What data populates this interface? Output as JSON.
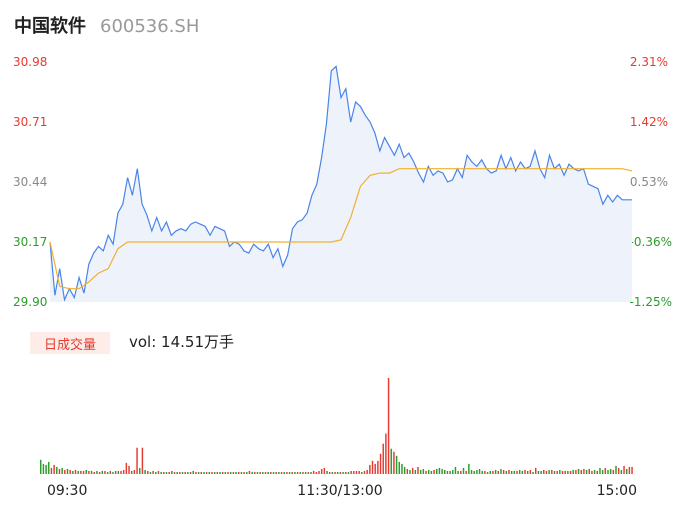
{
  "header": {
    "name": "中国软件",
    "code": "600536.SH"
  },
  "chart_data": {
    "type": "line",
    "price_axis": {
      "ticks": [
        "30.98",
        "30.71",
        "30.44",
        "30.17",
        "29.90"
      ],
      "ylim": [
        29.9,
        30.98
      ]
    },
    "percent_axis": {
      "ticks": [
        "2.31%",
        "1.42%",
        "0.53%",
        "-0.36%",
        "-1.25%"
      ]
    },
    "x_ticks": [
      "09:30",
      "11:30/13:00",
      "15:00"
    ],
    "series": [
      {
        "role": "price",
        "x": [
          0,
          2,
          4,
          6,
          8,
          10,
          12,
          14,
          16,
          18,
          20,
          22,
          24,
          26,
          28,
          30,
          32,
          34,
          36,
          38,
          40,
          42,
          44,
          46,
          48,
          50,
          52,
          54,
          56,
          58,
          60,
          62,
          64,
          66,
          68,
          70,
          72,
          74,
          76,
          78,
          80,
          82,
          84,
          86,
          88,
          90,
          92,
          94,
          96,
          98,
          100,
          102,
          104,
          106,
          108,
          110,
          112,
          114,
          116,
          118,
          120,
          122,
          124,
          126,
          128,
          130,
          132,
          134,
          136,
          138,
          140,
          142,
          144,
          146,
          148,
          150,
          152,
          154,
          156,
          158,
          160,
          162,
          164,
          166,
          168,
          170,
          172,
          174,
          176,
          178,
          180,
          182,
          184,
          186,
          188,
          190,
          192,
          194,
          196,
          198,
          200,
          202,
          204,
          206,
          208,
          210,
          212,
          214,
          216,
          218,
          220,
          222,
          224,
          226,
          228,
          230,
          232,
          234,
          236,
          238,
          240
        ],
        "values": [
          30.17,
          29.93,
          30.05,
          29.91,
          29.96,
          29.92,
          30.01,
          29.94,
          30.07,
          30.12,
          30.15,
          30.13,
          30.2,
          30.16,
          30.3,
          30.34,
          30.46,
          30.38,
          30.5,
          30.34,
          30.29,
          30.22,
          30.28,
          30.22,
          30.26,
          30.2,
          30.22,
          30.23,
          30.22,
          30.25,
          30.26,
          30.25,
          30.24,
          30.2,
          30.24,
          30.23,
          30.22,
          30.15,
          30.17,
          30.16,
          30.13,
          30.12,
          30.16,
          30.14,
          30.13,
          30.16,
          30.1,
          30.14,
          30.06,
          30.11,
          30.23,
          30.26,
          30.27,
          30.3,
          30.38,
          30.43,
          30.55,
          30.7,
          30.94,
          30.96,
          30.82,
          30.86,
          30.71,
          30.8,
          30.78,
          30.74,
          30.71,
          30.66,
          30.58,
          30.64,
          30.6,
          30.56,
          30.61,
          30.55,
          30.57,
          30.53,
          30.48,
          30.44,
          30.51,
          30.47,
          30.49,
          30.48,
          30.44,
          30.45,
          30.5,
          30.46,
          30.56,
          30.53,
          30.51,
          30.54,
          30.5,
          30.48,
          30.49,
          30.56,
          30.5,
          30.55,
          30.49,
          30.53,
          30.5,
          30.51,
          30.58,
          30.5,
          30.46,
          30.56,
          30.5,
          30.52,
          30.47,
          30.52,
          30.5,
          30.49,
          30.5,
          30.43,
          30.42,
          30.41,
          30.34,
          30.38,
          30.35,
          30.38,
          30.36,
          30.36,
          30.36
        ]
      },
      {
        "role": "average",
        "x": [
          0,
          4,
          8,
          12,
          16,
          20,
          24,
          28,
          32,
          36,
          40,
          44,
          48,
          52,
          56,
          60,
          64,
          68,
          72,
          76,
          80,
          84,
          88,
          92,
          96,
          100,
          104,
          108,
          112,
          116,
          120,
          124,
          128,
          132,
          136,
          140,
          144,
          148,
          152,
          156,
          160,
          164,
          168,
          172,
          176,
          180,
          184,
          188,
          192,
          196,
          200,
          204,
          208,
          212,
          216,
          220,
          224,
          228,
          232,
          236,
          240
        ],
        "values": [
          30.17,
          29.97,
          29.96,
          29.96,
          29.99,
          30.03,
          30.05,
          30.14,
          30.17,
          30.17,
          30.17,
          30.17,
          30.17,
          30.17,
          30.17,
          30.17,
          30.17,
          30.17,
          30.17,
          30.17,
          30.17,
          30.17,
          30.17,
          30.17,
          30.17,
          30.17,
          30.17,
          30.17,
          30.17,
          30.17,
          30.18,
          30.28,
          30.42,
          30.47,
          30.48,
          30.48,
          30.5,
          30.5,
          30.5,
          30.5,
          30.5,
          30.5,
          30.5,
          30.5,
          30.5,
          30.5,
          30.5,
          30.5,
          30.5,
          30.5,
          30.5,
          30.5,
          30.5,
          30.5,
          30.5,
          30.5,
          30.5,
          30.5,
          30.5,
          30.5,
          30.49
        ]
      }
    ],
    "volume": {
      "badge": "日成交量",
      "label": "vol: 14.51万手",
      "values": [
        14,
        10,
        9,
        12,
        6,
        9,
        7,
        5,
        6,
        4,
        5,
        4,
        3,
        4,
        3,
        3,
        3,
        4,
        3,
        3,
        2,
        3,
        2,
        3,
        3,
        2,
        3,
        2,
        3,
        3,
        3,
        4,
        11,
        8,
        3,
        4,
        26,
        6,
        26,
        4,
        3,
        2,
        3,
        2,
        3,
        2,
        2,
        2,
        2,
        3,
        2,
        2,
        2,
        2,
        2,
        2,
        2,
        3,
        2,
        2,
        2,
        2,
        2,
        2,
        2,
        2,
        2,
        2,
        2,
        2,
        2,
        2,
        2,
        2,
        2,
        2,
        2,
        2,
        3,
        2,
        2,
        2,
        2,
        2,
        2,
        2,
        2,
        2,
        2,
        2,
        2,
        2,
        2,
        2,
        2,
        2,
        2,
        2,
        2,
        2,
        2,
        2,
        3,
        2,
        3,
        5,
        6,
        3,
        2,
        2,
        2,
        2,
        2,
        2,
        2,
        2,
        3,
        3,
        3,
        3,
        2,
        3,
        4,
        9,
        13,
        10,
        13,
        20,
        30,
        40,
        95,
        25,
        22,
        18,
        12,
        10,
        7,
        5,
        4,
        6,
        4,
        7,
        4,
        5,
        3,
        4,
        3,
        4,
        5,
        6,
        5,
        4,
        3,
        3,
        4,
        7,
        3,
        3,
        6,
        3,
        10,
        4,
        3,
        4,
        5,
        3,
        3,
        2,
        3,
        3,
        4,
        3,
        5,
        4,
        3,
        4,
        3,
        3,
        3,
        4,
        3,
        4,
        3,
        4,
        2,
        6,
        3,
        3,
        4,
        3,
        4,
        4,
        3,
        3,
        4,
        3,
        3,
        3,
        3,
        4,
        4,
        5,
        4,
        5,
        4,
        5,
        3,
        4,
        3,
        6,
        4,
        6,
        4,
        5,
        4,
        8,
        6,
        4,
        8,
        5,
        7,
        7
      ],
      "colors": [
        "#2a9d2a",
        "#2a9d2a",
        "#2a9d2a",
        "#2a9d2a",
        "#e63a32",
        "#e63a32",
        "#2a9d2a",
        "#e63a32",
        "#2a9d2a",
        "#e63a32",
        "#2a9d2a",
        "#e63a32",
        "#2a9d2a",
        "#e63a32",
        "#2a9d2a",
        "#e63a32",
        "#e63a32",
        "#2a9d2a",
        "#e63a32",
        "#2a9d2a",
        "#e63a32",
        "#2a9d2a",
        "#e63a32",
        "#2a9d2a",
        "#e63a32",
        "#2a9d2a",
        "#e63a32",
        "#2a9d2a",
        "#e63a32",
        "#2a9d2a",
        "#e63a32",
        "#e63a32",
        "#e63a32",
        "#e63a32",
        "#2a9d2a",
        "#e63a32",
        "#e63a32",
        "#2a9d2a",
        "#e63a32",
        "#2a9d2a",
        "#e63a32",
        "#2a9d2a",
        "#e63a32",
        "#2a9d2a",
        "#e63a32",
        "#2a9d2a",
        "#e63a32",
        "#2a9d2a",
        "#e63a32",
        "#2a9d2a",
        "#e63a32",
        "#2a9d2a",
        "#e63a32",
        "#2a9d2a",
        "#e63a32",
        "#2a9d2a",
        "#e63a32",
        "#2a9d2a",
        "#e63a32",
        "#2a9d2a",
        "#e63a32",
        "#2a9d2a",
        "#e63a32",
        "#2a9d2a",
        "#e63a32",
        "#2a9d2a",
        "#e63a32",
        "#2a9d2a",
        "#e63a32",
        "#2a9d2a",
        "#e63a32",
        "#2a9d2a",
        "#e63a32",
        "#2a9d2a",
        "#e63a32",
        "#2a9d2a",
        "#e63a32",
        "#2a9d2a",
        "#e63a32",
        "#2a9d2a",
        "#e63a32",
        "#2a9d2a",
        "#e63a32",
        "#2a9d2a",
        "#e63a32",
        "#2a9d2a",
        "#e63a32",
        "#2a9d2a",
        "#e63a32",
        "#2a9d2a",
        "#e63a32",
        "#2a9d2a",
        "#e63a32",
        "#2a9d2a",
        "#e63a32",
        "#2a9d2a",
        "#e63a32",
        "#2a9d2a",
        "#e63a32",
        "#2a9d2a",
        "#e63a32",
        "#2a9d2a",
        "#e63a32",
        "#e63a32",
        "#e63a32",
        "#e63a32",
        "#e63a32",
        "#2a9d2a",
        "#e63a32",
        "#2a9d2a",
        "#e63a32",
        "#2a9d2a",
        "#e63a32",
        "#2a9d2a",
        "#e63a32",
        "#2a9d2a",
        "#e63a32",
        "#e63a32",
        "#e63a32",
        "#e63a32",
        "#2a9d2a",
        "#e63a32",
        "#e63a32",
        "#e63a32",
        "#e63a32",
        "#e63a32",
        "#e63a32",
        "#e63a32",
        "#e63a32",
        "#e63a32",
        "#e63a32",
        "#2a9d2a",
        "#e63a32",
        "#2a9d2a",
        "#2a9d2a",
        "#2a9d2a",
        "#2a9d2a",
        "#e63a32",
        "#2a9d2a",
        "#e63a32",
        "#2a9d2a",
        "#e63a32",
        "#2a9d2a",
        "#2a9d2a",
        "#e63a32",
        "#2a9d2a",
        "#2a9d2a",
        "#e63a32",
        "#2a9d2a",
        "#2a9d2a",
        "#2a9d2a",
        "#2a9d2a",
        "#e63a32",
        "#2a9d2a",
        "#2a9d2a",
        "#2a9d2a",
        "#2a9d2a",
        "#e63a32",
        "#2a9d2a",
        "#e63a32",
        "#2a9d2a",
        "#2a9d2a",
        "#2a9d2a",
        "#2a9d2a",
        "#2a9d2a",
        "#2a9d2a",
        "#e63a32",
        "#2a9d2a",
        "#2a9d2a",
        "#e63a32",
        "#2a9d2a",
        "#e63a32",
        "#2a9d2a",
        "#e63a32",
        "#2a9d2a",
        "#e63a32",
        "#2a9d2a",
        "#2a9d2a",
        "#e63a32",
        "#2a9d2a",
        "#2a9d2a",
        "#e63a32",
        "#2a9d2a",
        "#e63a32",
        "#2a9d2a",
        "#e63a32",
        "#2a9d2a",
        "#2a9d2a",
        "#e63a32",
        "#e63a32",
        "#2a9d2a",
        "#e63a32",
        "#2a9d2a",
        "#e63a32",
        "#2a9d2a",
        "#e63a32",
        "#e63a32",
        "#2a9d2a",
        "#e63a32",
        "#2a9d2a",
        "#e63a32",
        "#2a9d2a",
        "#e63a32",
        "#e63a32",
        "#2a9d2a",
        "#e63a32",
        "#e63a32",
        "#2a9d2a",
        "#e63a32",
        "#2a9d2a",
        "#2a9d2a",
        "#e63a32",
        "#2a9d2a",
        "#2a9d2a",
        "#e63a32",
        "#2a9d2a",
        "#e63a32",
        "#2a9d2a",
        "#e63a32",
        "#2a9d2a",
        "#e63a32",
        "#e63a32",
        "#2a9d2a",
        "#e63a32",
        "#e63a32",
        "#2a9d2a",
        "#e63a32",
        "#e63a32",
        "#2a9d2a",
        "#e63a32",
        "#e63a32",
        "#e63a32"
      ]
    },
    "colors": {
      "up": "#e63a32",
      "down": "#2a9d2a",
      "neutral": "#888888",
      "price_line": "#4a84e8",
      "price_fill": "#eef3fb",
      "avg_line": "#f0b030"
    },
    "grid": false
  }
}
